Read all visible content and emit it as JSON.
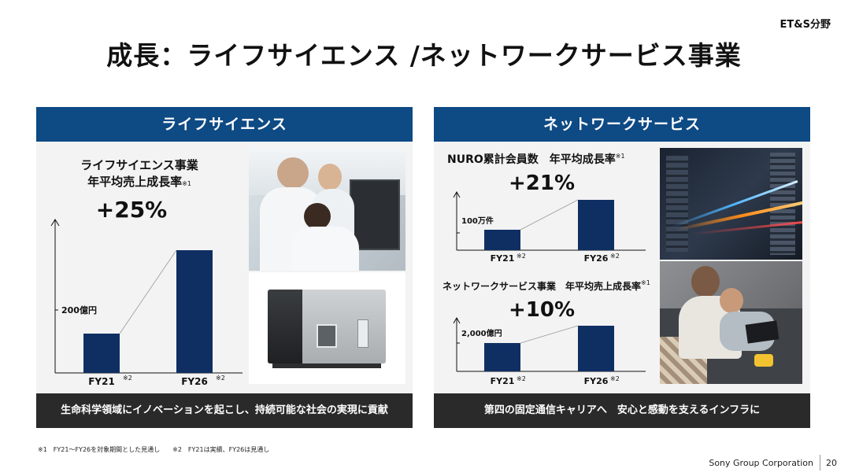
{
  "division": "ET&S分野",
  "page_title": "成長：ライフサイエンス /ネットワークサービス事業",
  "left": {
    "header": "ライフサイエンス",
    "kpi_line1": "ライフサイエンス事業",
    "kpi_line2": "年平均売上成長率",
    "kpi_note": "※1",
    "growth": "+25%",
    "axis_label": "200億円",
    "footer": "生命科学領域にイノベーションを起こし、持続可能な社会の実現に貢献"
  },
  "right": {
    "header": "ネットワークサービス",
    "kpi1_label": "NURO累計会員数　年平均成長率",
    "kpi1_note": "※1",
    "kpi1_growth": "+21%",
    "kpi1_axis_label": "100万件",
    "kpi2_label": "ネットワークサービス事業　年平均売上成長率",
    "kpi2_note": "※1",
    "kpi2_growth": "+10%",
    "kpi2_axis_label": "2,000億円",
    "footer": "第四の固定通信キャリアへ　安心と感動を支えるインフラに"
  },
  "footnotes": "※1　FY21～FY26を対象期間とした見通し　　※2　FY21は実績、FY26は見通し",
  "corporation": "Sony Group Corporation",
  "page_number": "20",
  "colors": {
    "navy": "#0e4a84",
    "bar": "#0f2f63",
    "dark": "#2a2a2a",
    "panel": "#f3f3f3"
  },
  "chart_data": [
    {
      "type": "bar",
      "categories": [
        "FY21",
        "FY26"
      ],
      "category_notes": [
        "※2",
        "※2"
      ],
      "series": [
        {
          "values": [
            1.0,
            3.05
          ]
        }
      ],
      "ylabel": "200億円",
      "annotation": "+25%"
    },
    {
      "type": "bar",
      "categories": [
        "FY21",
        "FY26"
      ],
      "category_notes": [
        "※2",
        "※2"
      ],
      "series": [
        {
          "values": [
            1.0,
            2.5
          ]
        }
      ],
      "ylabel": "100万件",
      "annotation": "+21%"
    },
    {
      "type": "bar",
      "categories": [
        "FY21",
        "FY26"
      ],
      "category_notes": [
        "※2",
        "※2"
      ],
      "series": [
        {
          "values": [
            1.0,
            1.55
          ]
        }
      ],
      "ylabel": "2,000億円",
      "annotation": "+10%"
    }
  ]
}
